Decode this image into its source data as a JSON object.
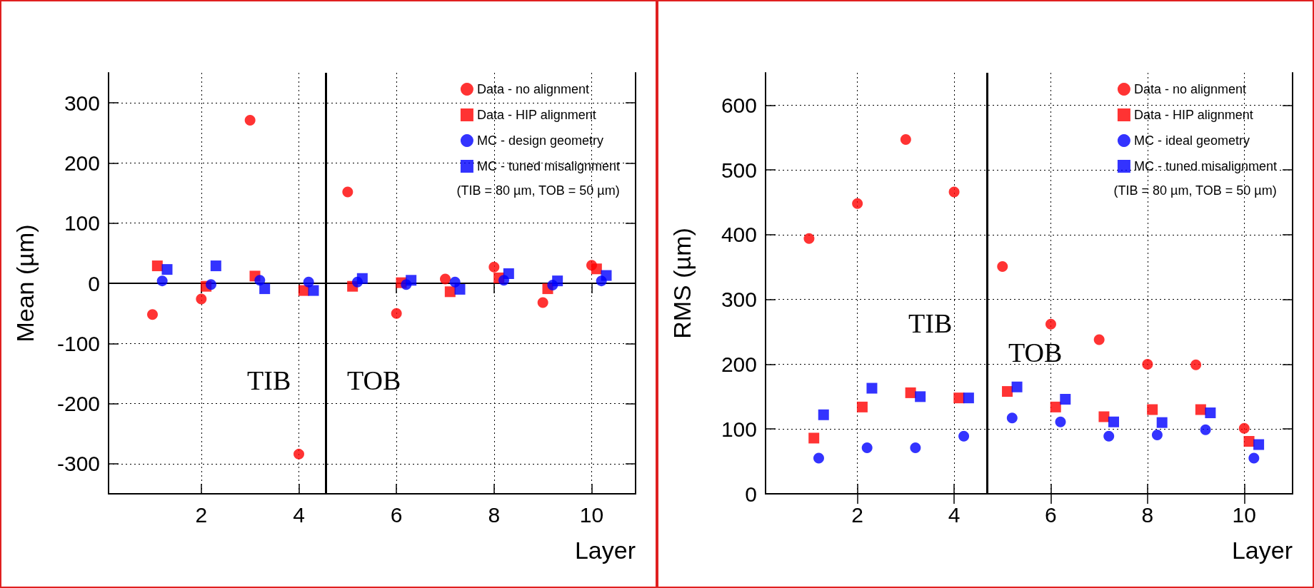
{
  "chart_data": [
    {
      "type": "scatter",
      "ylabel": "Mean (µm)",
      "xlabel": "Layer",
      "xlim": [
        0.1,
        10.9
      ],
      "xticks": [
        2,
        4,
        6,
        8,
        10
      ],
      "ylim": [
        -350,
        350
      ],
      "yticks": [
        -300,
        -200,
        -100,
        0,
        100,
        200,
        300
      ],
      "grid": true,
      "legend": "top right",
      "series": [
        {
          "name": "Data - no alignment",
          "color": "#ff0000",
          "marker": "circle",
          "x": [
            1,
            2,
            3,
            4,
            5,
            6,
            7,
            8,
            9,
            10
          ],
          "values": [
            -52,
            -26,
            271,
            -284,
            152,
            -50,
            7,
            27,
            -32,
            30
          ]
        },
        {
          "name": "Data - HIP alignment",
          "color": "#ff0000",
          "marker": "square",
          "x": [
            1.1,
            2.1,
            3.1,
            4.1,
            5.1,
            6.1,
            7.1,
            8.1,
            9.1,
            10.1
          ],
          "values": [
            29,
            -5,
            12,
            -12,
            -5,
            1,
            -14,
            9,
            -9,
            24
          ]
        },
        {
          "name": "MC - design geometry",
          "color": "#0000ff",
          "marker": "circle",
          "x": [
            1.2,
            2.2,
            3.2,
            4.2,
            5.2,
            6.2,
            7.2,
            8.2,
            9.2,
            10.2
          ],
          "values": [
            4,
            -2,
            5,
            2,
            2,
            -2,
            2,
            5,
            -3,
            4
          ]
        },
        {
          "name": "MC - tuned misalignment",
          "color": "#0000ff",
          "marker": "square",
          "x": [
            1.3,
            2.3,
            3.3,
            4.3,
            5.3,
            6.3,
            7.3,
            8.3,
            9.3,
            10.3
          ],
          "values": [
            23,
            29,
            -9,
            -12,
            8,
            5,
            -10,
            16,
            4,
            13
          ]
        }
      ],
      "ref_lines": [
        {
          "axis": "x",
          "value": 4.55,
          "color": "#000000"
        },
        {
          "axis": "y",
          "value": 0,
          "color": "#000000"
        }
      ],
      "annotations": [
        "(TIB = 80 µm, TOB = 50 µm)",
        "TIB",
        "TOB"
      ]
    },
    {
      "type": "scatter",
      "ylabel": "RMS (µm)",
      "xlabel": "Layer",
      "xlim": [
        0.1,
        11
      ],
      "xticks": [
        2,
        4,
        6,
        8,
        10
      ],
      "ylim": [
        0,
        650
      ],
      "yticks": [
        0,
        100,
        200,
        300,
        400,
        500,
        600
      ],
      "grid": true,
      "legend": "top right",
      "series": [
        {
          "name": "Data - no alignment",
          "color": "#ff0000",
          "marker": "circle",
          "x": [
            1,
            2,
            3,
            4,
            5,
            6,
            7,
            8,
            9,
            10
          ],
          "values": [
            394,
            448,
            547,
            466,
            351,
            262,
            238,
            200,
            199,
            101
          ]
        },
        {
          "name": "Data - HIP alignment",
          "color": "#ff0000",
          "marker": "square",
          "x": [
            1.1,
            2.1,
            3.1,
            4.1,
            5.1,
            6.1,
            7.1,
            8.1,
            9.1,
            10.1
          ],
          "values": [
            86,
            134,
            156,
            148,
            158,
            134,
            119,
            130,
            130,
            81
          ]
        },
        {
          "name": "MC - ideal geometry",
          "color": "#0000ff",
          "marker": "circle",
          "x": [
            1.2,
            2.2,
            3.2,
            4.2,
            5.2,
            6.2,
            7.2,
            8.2,
            9.2,
            10.2
          ],
          "values": [
            55,
            71,
            71,
            89,
            117,
            111,
            89,
            91,
            99,
            55
          ]
        },
        {
          "name": "MC - tuned misalignment",
          "color": "#0000ff",
          "marker": "square",
          "x": [
            1.3,
            2.3,
            3.3,
            4.3,
            5.3,
            6.3,
            7.3,
            8.3,
            9.3,
            10.3
          ],
          "values": [
            122,
            163,
            150,
            148,
            165,
            146,
            111,
            110,
            125,
            76
          ]
        }
      ],
      "ref_lines": [
        {
          "axis": "x",
          "value": 4.68,
          "color": "#000000"
        }
      ],
      "annotations": [
        "(TIB = 80 µm, TOB = 50 µm)",
        "TIB",
        "TOB"
      ]
    }
  ]
}
